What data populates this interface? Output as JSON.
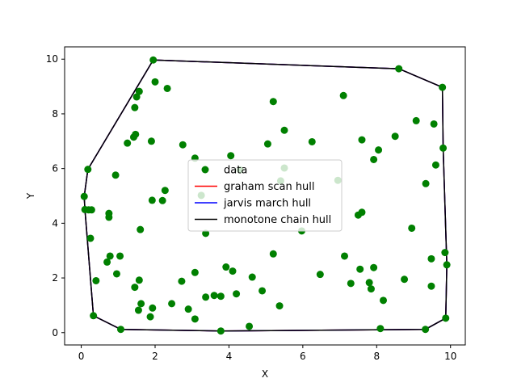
{
  "chart_data": {
    "type": "scatter",
    "title": "",
    "xlabel": "X",
    "ylabel": "Y",
    "xlim": [
      -0.45,
      10.4
    ],
    "ylim": [
      -0.45,
      10.45
    ],
    "xticks": [
      0,
      2,
      4,
      6,
      8,
      10
    ],
    "yticks": [
      0,
      2,
      4,
      6,
      8,
      10
    ],
    "xtick_labels": [
      "0",
      "2",
      "4",
      "6",
      "8",
      "10"
    ],
    "ytick_labels": [
      "0",
      "2",
      "4",
      "6",
      "8",
      "10"
    ],
    "grid": false,
    "legend_position": "center",
    "colors": {
      "data": "#008000",
      "graham": "#ff0000",
      "jarvis": "#0000ff",
      "monotone": "#000000"
    },
    "series": [
      {
        "name": "data",
        "kind": "points",
        "points": [
          [
            1.95,
            9.97
          ],
          [
            2.0,
            9.17
          ],
          [
            2.33,
            8.93
          ],
          [
            1.57,
            8.82
          ],
          [
            1.5,
            8.62
          ],
          [
            1.45,
            8.23
          ],
          [
            1.47,
            7.25
          ],
          [
            1.42,
            7.15
          ],
          [
            1.25,
            6.93
          ],
          [
            1.9,
            7.0
          ],
          [
            0.18,
            5.97
          ],
          [
            0.93,
            5.76
          ],
          [
            0.08,
            4.98
          ],
          [
            0.1,
            4.5
          ],
          [
            0.2,
            4.49
          ],
          [
            0.28,
            4.49
          ],
          [
            0.75,
            4.36
          ],
          [
            0.75,
            4.22
          ],
          [
            0.25,
            3.45
          ],
          [
            0.78,
            2.8
          ],
          [
            1.05,
            2.8
          ],
          [
            0.7,
            2.58
          ],
          [
            0.96,
            2.15
          ],
          [
            0.4,
            1.9
          ],
          [
            0.33,
            0.62
          ],
          [
            1.07,
            0.12
          ],
          [
            1.45,
            1.66
          ],
          [
            1.57,
            1.92
          ],
          [
            1.62,
            1.06
          ],
          [
            1.55,
            0.82
          ],
          [
            1.87,
            0.58
          ],
          [
            1.93,
            0.9
          ],
          [
            2.45,
            1.06
          ],
          [
            2.9,
            0.86
          ],
          [
            3.08,
            0.5
          ],
          [
            2.72,
            1.88
          ],
          [
            3.08,
            2.2
          ],
          [
            1.6,
            3.77
          ],
          [
            1.92,
            4.84
          ],
          [
            2.2,
            4.83
          ],
          [
            2.27,
            5.2
          ],
          [
            2.75,
            6.87
          ],
          [
            3.08,
            6.38
          ],
          [
            3.25,
            5.02
          ],
          [
            3.37,
            3.63
          ],
          [
            3.37,
            1.3
          ],
          [
            3.6,
            1.36
          ],
          [
            3.78,
            1.33
          ],
          [
            3.78,
            0.06
          ],
          [
            3.92,
            2.4
          ],
          [
            4.05,
            6.47
          ],
          [
            4.1,
            2.25
          ],
          [
            4.2,
            1.42
          ],
          [
            4.3,
            5.95
          ],
          [
            4.55,
            0.23
          ],
          [
            4.63,
            2.03
          ],
          [
            4.9,
            1.53
          ],
          [
            5.05,
            6.9
          ],
          [
            5.2,
            8.45
          ],
          [
            5.2,
            2.88
          ],
          [
            5.37,
            0.98
          ],
          [
            5.5,
            7.4
          ],
          [
            5.5,
            6.02
          ],
          [
            5.4,
            5.55
          ],
          [
            5.97,
            3.72
          ],
          [
            6.25,
            6.98
          ],
          [
            6.47,
            2.13
          ],
          [
            6.95,
            5.57
          ],
          [
            7.1,
            8.67
          ],
          [
            7.13,
            2.8
          ],
          [
            7.3,
            1.8
          ],
          [
            7.5,
            4.3
          ],
          [
            7.55,
            2.32
          ],
          [
            7.6,
            7.05
          ],
          [
            7.6,
            4.4
          ],
          [
            7.8,
            1.83
          ],
          [
            7.85,
            1.6
          ],
          [
            7.92,
            2.38
          ],
          [
            7.92,
            6.33
          ],
          [
            8.05,
            6.68
          ],
          [
            8.18,
            1.18
          ],
          [
            8.1,
            0.15
          ],
          [
            8.5,
            7.18
          ],
          [
            8.6,
            9.65
          ],
          [
            8.75,
            1.95
          ],
          [
            8.95,
            3.82
          ],
          [
            9.07,
            7.75
          ],
          [
            9.32,
            0.12
          ],
          [
            9.33,
            5.45
          ],
          [
            9.48,
            2.7
          ],
          [
            9.48,
            1.7
          ],
          [
            9.55,
            7.63
          ],
          [
            9.6,
            6.13
          ],
          [
            9.78,
            8.97
          ],
          [
            9.8,
            6.75
          ],
          [
            9.85,
            2.93
          ],
          [
            9.9,
            2.48
          ],
          [
            9.87,
            0.53
          ]
        ]
      },
      {
        "name": "graham scan hull",
        "kind": "line",
        "points": [
          [
            3.78,
            0.06
          ],
          [
            9.32,
            0.12
          ],
          [
            9.87,
            0.53
          ],
          [
            9.9,
            2.48
          ],
          [
            9.8,
            6.75
          ],
          [
            9.78,
            8.97
          ],
          [
            8.6,
            9.65
          ],
          [
            1.95,
            9.97
          ],
          [
            0.18,
            5.97
          ],
          [
            0.08,
            4.98
          ],
          [
            0.1,
            4.5
          ],
          [
            0.33,
            0.62
          ],
          [
            1.07,
            0.12
          ],
          [
            3.78,
            0.06
          ]
        ]
      },
      {
        "name": "jarvis march hull",
        "kind": "line",
        "points": [
          [
            0.08,
            4.98
          ],
          [
            0.18,
            5.97
          ],
          [
            1.95,
            9.97
          ],
          [
            8.6,
            9.65
          ],
          [
            9.78,
            8.97
          ],
          [
            9.8,
            6.75
          ],
          [
            9.9,
            2.48
          ],
          [
            9.87,
            0.53
          ],
          [
            9.32,
            0.12
          ],
          [
            3.78,
            0.06
          ],
          [
            1.07,
            0.12
          ],
          [
            0.33,
            0.62
          ],
          [
            0.1,
            4.5
          ],
          [
            0.08,
            4.98
          ]
        ]
      },
      {
        "name": "monotone chain hull",
        "kind": "line",
        "points": [
          [
            0.08,
            4.98
          ],
          [
            0.1,
            4.5
          ],
          [
            0.33,
            0.62
          ],
          [
            1.07,
            0.12
          ],
          [
            3.78,
            0.06
          ],
          [
            9.32,
            0.12
          ],
          [
            9.87,
            0.53
          ],
          [
            9.9,
            2.48
          ],
          [
            9.8,
            6.75
          ],
          [
            9.78,
            8.97
          ],
          [
            8.6,
            9.65
          ],
          [
            1.95,
            9.97
          ],
          [
            0.18,
            5.97
          ],
          [
            0.08,
            4.98
          ]
        ]
      }
    ]
  }
}
